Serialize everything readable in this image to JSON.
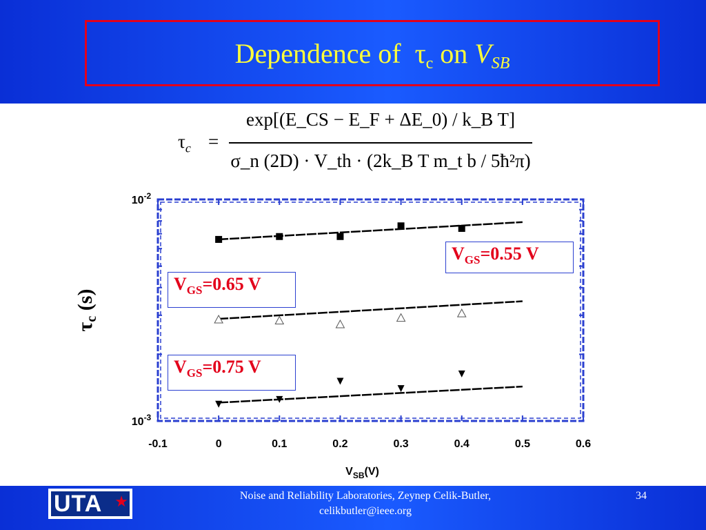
{
  "slide": {
    "title_prefix": "Dependence of",
    "title_tau": "τ",
    "title_tau_sub": "c",
    "title_on": "on",
    "title_v": "V",
    "title_v_sub": "SB"
  },
  "formula": {
    "lhs_tau": "τ",
    "lhs_sub": "c",
    "equals": "=",
    "numerator": "exp[(E_CS − E_F + ΔE_0) / k_B T]",
    "denominator": "σ_n (2D) · V_th · (2k_B T m_t b / 5ħ²π)"
  },
  "chart_data": {
    "type": "scatter",
    "xlabel": "V_SB(V)",
    "ylabel": "τ_c (s)",
    "xlim": [
      -0.1,
      0.6
    ],
    "ylim": [
      0.001,
      0.01
    ],
    "yscale": "log",
    "xticks": [
      "-0.1",
      "0",
      "0.1",
      "0.2",
      "0.3",
      "0.4",
      "0.5",
      "0.6"
    ],
    "yticks": [
      {
        "base": "10",
        "exp": "-2",
        "value": 0.01
      },
      {
        "base": "10",
        "exp": "-3",
        "value": 0.001
      }
    ],
    "series": [
      {
        "name": "V_GS=0.55 V",
        "marker": "square",
        "x": [
          0.0,
          0.1,
          0.2,
          0.3,
          0.4
        ],
        "y": [
          0.0066,
          0.0068,
          0.0068,
          0.0076,
          0.0074
        ],
        "fit": {
          "x": [
            0.0,
            0.5
          ],
          "y": [
            0.0066,
            0.0079
          ]
        }
      },
      {
        "name": "V_GS=0.65 V",
        "marker": "triangle-up-open",
        "x": [
          0.0,
          0.1,
          0.2,
          0.3,
          0.4
        ],
        "y": [
          0.00287,
          0.00284,
          0.00273,
          0.00292,
          0.00306
        ],
        "fit": {
          "x": [
            0.0,
            0.5
          ],
          "y": [
            0.00289,
            0.00347
          ]
        }
      },
      {
        "name": "V_GS=0.75 V",
        "marker": "triangle-down-filled",
        "x": [
          0.0,
          0.1,
          0.2,
          0.3,
          0.4
        ],
        "y": [
          0.00119,
          0.00125,
          0.00151,
          0.0014,
          0.00163
        ],
        "fit": {
          "x": [
            0.0,
            0.5
          ],
          "y": [
            0.00121,
            0.00143
          ]
        }
      }
    ],
    "legend_labels": [
      {
        "v": "V",
        "sub": "GS",
        "rest": "=0.55 V"
      },
      {
        "v": "V",
        "sub": "GS",
        "rest": "=0.65 V"
      },
      {
        "v": "V",
        "sub": "GS",
        "rest": "=0.75 V"
      }
    ]
  },
  "footer": {
    "logo_text": "UTA",
    "line1": "Noise and Reliability Laboratories, Zeynep Celik-Butler,",
    "line2": "celikbutler@ieee.org",
    "page": "34"
  },
  "colors": {
    "header_blue": "#0a2fd6",
    "title_yellow": "#ffff3a",
    "accent_red": "#e3001b",
    "axis_blue": "#2a3fd0"
  }
}
